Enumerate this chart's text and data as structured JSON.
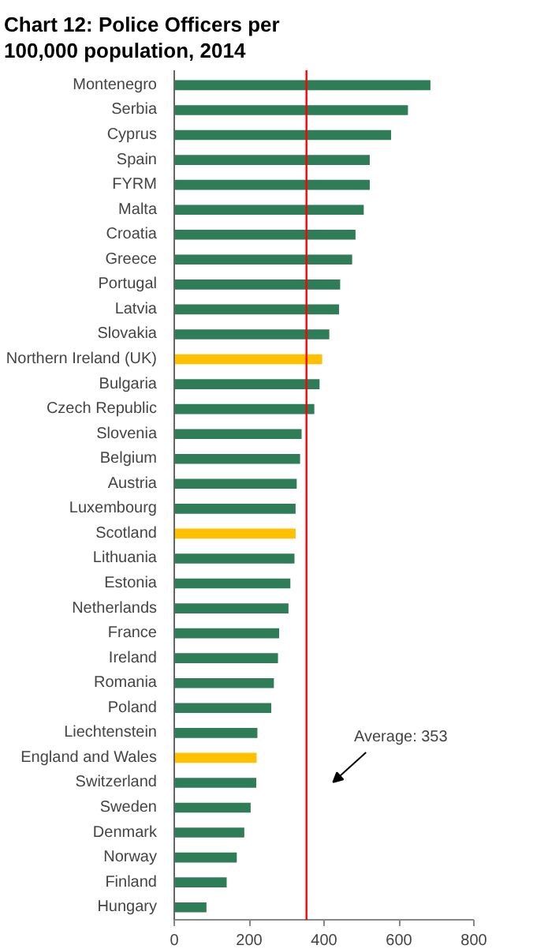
{
  "chart_data": {
    "type": "bar",
    "orientation": "horizontal",
    "title": "Chart 12: Police Officers per 100,000 population, 2014",
    "categories": [
      "Montenegro",
      "Serbia",
      "Cyprus",
      "Spain",
      "FYRM",
      "Malta",
      "Croatia",
      "Greece",
      "Portugal",
      "Latvia",
      "Slovakia",
      "Northern Ireland (UK)",
      "Bulgaria",
      "Czech Republic",
      "Slovenia",
      "Belgium",
      "Austria",
      "Luxembourg",
      "Scotland",
      "Lithuania",
      "Estonia",
      "Netherlands",
      "France",
      "Ireland",
      "Romania",
      "Poland",
      "Liechtenstein",
      "England and Wales",
      "Switzerland",
      "Sweden",
      "Denmark",
      "Norway",
      "Finland",
      "Hungary"
    ],
    "values": [
      684,
      624,
      579,
      522,
      522,
      506,
      484,
      475,
      443,
      440,
      414,
      395,
      388,
      374,
      340,
      336,
      327,
      324,
      324,
      321,
      310,
      305,
      280,
      277,
      266,
      259,
      222,
      220,
      219,
      204,
      187,
      167,
      140,
      86
    ],
    "colors": [
      "#2e7d57",
      "#2e7d57",
      "#2e7d57",
      "#2e7d57",
      "#2e7d57",
      "#2e7d57",
      "#2e7d57",
      "#2e7d57",
      "#2e7d57",
      "#2e7d57",
      "#2e7d57",
      "#ffc000",
      "#2e7d57",
      "#2e7d57",
      "#2e7d57",
      "#2e7d57",
      "#2e7d57",
      "#2e7d57",
      "#ffc000",
      "#2e7d57",
      "#2e7d57",
      "#2e7d57",
      "#2e7d57",
      "#2e7d57",
      "#2e7d57",
      "#2e7d57",
      "#2e7d57",
      "#ffc000",
      "#2e7d57",
      "#2e7d57",
      "#2e7d57",
      "#2e7d57",
      "#2e7d57",
      "#2e7d57"
    ],
    "xlim": [
      0,
      800
    ],
    "xticks": [
      0,
      200,
      400,
      600,
      800
    ],
    "ref_lines": [
      {
        "axis": "x",
        "value": 353,
        "color": "#ff0000"
      }
    ],
    "annotations": [
      "Average: 353"
    ],
    "grid": false
  }
}
